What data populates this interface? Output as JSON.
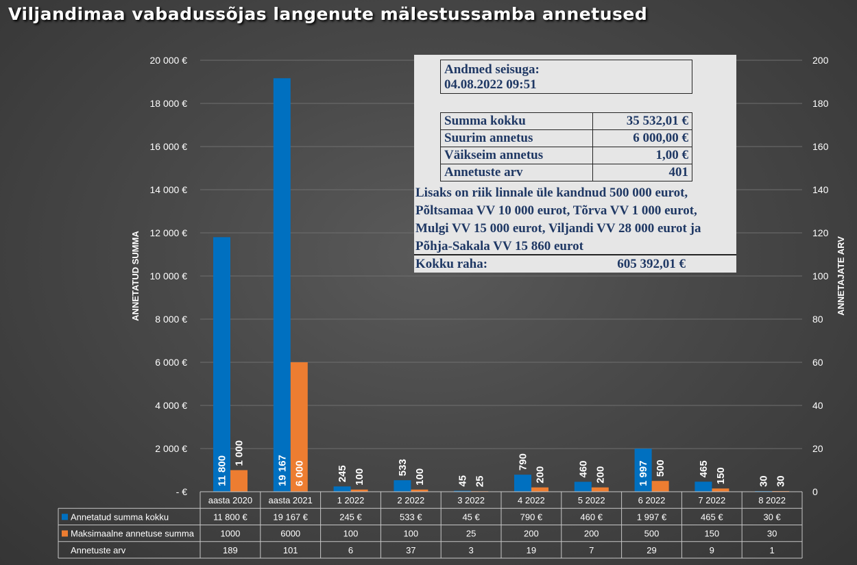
{
  "title": "Viljandimaa vabadussõjas langenute mälestussamba annetused",
  "chart_data": {
    "type": "bar",
    "categories": [
      "aasta 2020",
      "aasta 2021",
      "1 2022",
      "2 2022",
      "3 2022",
      "4 2022",
      "5 2022",
      "6 2022",
      "7 2022",
      "8 2022"
    ],
    "series": [
      {
        "name": "Annetatud summa kokku",
        "color": "#0070c0",
        "values": [
          11800,
          19167,
          245,
          533,
          45,
          790,
          460,
          1997,
          465,
          30
        ],
        "bar_labels": [
          "11 800",
          "19 167",
          "245",
          "533",
          "45",
          "790",
          "460",
          "1 997",
          "465",
          "30"
        ],
        "table_values": [
          "11 800 €",
          "19 167 €",
          "245 €",
          "533 €",
          "45 €",
          "790 €",
          "460 €",
          "1 997 €",
          "465 €",
          "30 €"
        ]
      },
      {
        "name": "Maksimaalne annetuse summa",
        "color": "#ed7d31",
        "values": [
          1000,
          6000,
          100,
          100,
          25,
          200,
          200,
          500,
          150,
          30
        ],
        "bar_labels": [
          "1 000",
          "6 000",
          "100",
          "100",
          "25",
          "200",
          "200",
          "500",
          "150",
          "30"
        ],
        "table_values": [
          "1000",
          "6000",
          "100",
          "100",
          "25",
          "200",
          "200",
          "500",
          "150",
          "30"
        ]
      },
      {
        "name": "Annetuste arv",
        "axis": "secondary",
        "values": [
          189,
          101,
          6,
          37,
          3,
          19,
          7,
          29,
          9,
          1
        ],
        "table_values": [
          "189",
          "101",
          "6",
          "37",
          "3",
          "19",
          "7",
          "29",
          "9",
          "1"
        ]
      }
    ],
    "ylabel": "ANNETATUD SUMMA",
    "y2label": "ANNETAJATE ARV",
    "ylim": [
      0,
      20000
    ],
    "y2lim": [
      0,
      200
    ],
    "y_ticks": [
      0,
      2000,
      4000,
      6000,
      8000,
      10000,
      12000,
      14000,
      16000,
      18000,
      20000
    ],
    "y_tick_labels": [
      "-  €",
      "2 000 €",
      "4 000 €",
      "6 000 €",
      "8 000 €",
      "10 000 €",
      "12 000 €",
      "14 000 €",
      "16 000 €",
      "18 000 €",
      "20 000 €"
    ],
    "y2_tick_labels": [
      "0",
      "20",
      "40",
      "60",
      "80",
      "100",
      "120",
      "140",
      "160",
      "180",
      "200"
    ],
    "grid": true,
    "legend": "data-table-below"
  },
  "info_box": {
    "as_of_label": "Andmed seisuga:",
    "as_of_value": "04.08.2022 09:51",
    "stats": [
      {
        "label": "Summa kokku",
        "value": "35 532,01 €"
      },
      {
        "label": "Suurim annetus",
        "value": "6 000,00 €"
      },
      {
        "label": "Väikseim annetus",
        "value": "1,00 €"
      },
      {
        "label": "Annetuste arv",
        "value": "401"
      }
    ],
    "note_lines": [
      "Lisaks on riik linnale üle kandnud 500 000 eurot,",
      "Põltsamaa VV 10 000 eurot, Tõrva VV 1 000 eurot,",
      "Mulgi VV 15 000 eurot, Viljandi VV 28 000 eurot ja",
      "Põhja-Sakala VV 15 860 eurot"
    ],
    "total_label": "Kokku raha:",
    "total_value": "605 392,01 €"
  }
}
